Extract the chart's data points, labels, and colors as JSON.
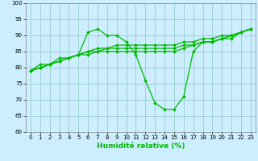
{
  "xlabel": "Humidité relative (%)",
  "bg_color": "#cceeff",
  "grid_color": "#99cccc",
  "line_color": "#00bb00",
  "xlim": [
    -0.5,
    23.5
  ],
  "ylim": [
    60,
    100
  ],
  "yticks": [
    60,
    65,
    70,
    75,
    80,
    85,
    90,
    95,
    100
  ],
  "xticks": [
    0,
    1,
    2,
    3,
    4,
    5,
    6,
    7,
    8,
    9,
    10,
    11,
    12,
    13,
    14,
    15,
    16,
    17,
    18,
    19,
    20,
    21,
    22,
    23
  ],
  "series": [
    [
      79,
      81,
      81,
      83,
      83,
      84,
      91,
      92,
      90,
      90,
      88,
      84,
      76,
      69,
      67,
      67,
      71,
      85,
      88,
      88,
      89,
      89,
      91,
      92
    ],
    [
      79,
      80,
      81,
      82,
      83,
      84,
      85,
      86,
      86,
      87,
      87,
      87,
      87,
      87,
      87,
      87,
      88,
      88,
      89,
      89,
      90,
      90,
      91,
      92
    ],
    [
      79,
      80,
      81,
      82,
      83,
      84,
      85,
      85,
      86,
      86,
      86,
      86,
      86,
      86,
      86,
      86,
      87,
      87,
      88,
      88,
      89,
      90,
      91,
      92
    ],
    [
      79,
      80,
      81,
      82,
      83,
      84,
      84,
      85,
      85,
      85,
      85,
      85,
      85,
      85,
      85,
      85,
      86,
      87,
      88,
      88,
      89,
      90,
      91,
      92
    ]
  ],
  "xlabel_fontsize": 6.5,
  "tick_fontsize": 5.0,
  "linewidth": 0.9,
  "markersize": 2.0
}
